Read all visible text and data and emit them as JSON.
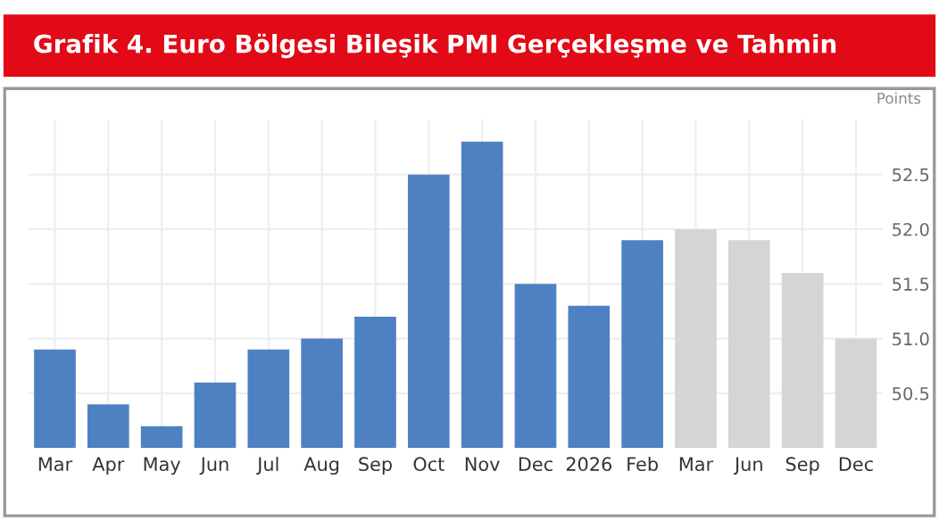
{
  "chart_data": {
    "type": "bar",
    "title": "Grafik 4. Euro Bölgesi Bileşik PMI Gerçekleşme ve Tahmin",
    "ylabel": "Points",
    "categories": [
      "Mar",
      "Apr",
      "May",
      "Jun",
      "Jul",
      "Aug",
      "Sep",
      "Oct",
      "Nov",
      "Dec",
      "2026",
      "Feb",
      "Mar",
      "Jun",
      "Sep",
      "Dec"
    ],
    "values": [
      50.9,
      50.4,
      50.2,
      50.6,
      50.9,
      51.0,
      51.2,
      52.5,
      52.8,
      51.5,
      51.3,
      51.9,
      52.0,
      51.9,
      51.6,
      51.0
    ],
    "colors": [
      "#4e81c2",
      "#4e81c2",
      "#4e81c2",
      "#4e81c2",
      "#4e81c2",
      "#4e81c2",
      "#4e81c2",
      "#4e81c2",
      "#4e81c2",
      "#4e81c2",
      "#4e81c2",
      "#4e81c2",
      "#d6d5d6",
      "#d6d5d6",
      "#d6d5d6",
      "#d6d5d6"
    ],
    "ylim": [
      50,
      53
    ],
    "yticks": [
      50.5,
      {
        "value": 51,
        "label": "51.0"
      },
      51.5,
      {
        "value": 52,
        "label": "52.0"
      },
      52.5
    ],
    "grid": true
  }
}
